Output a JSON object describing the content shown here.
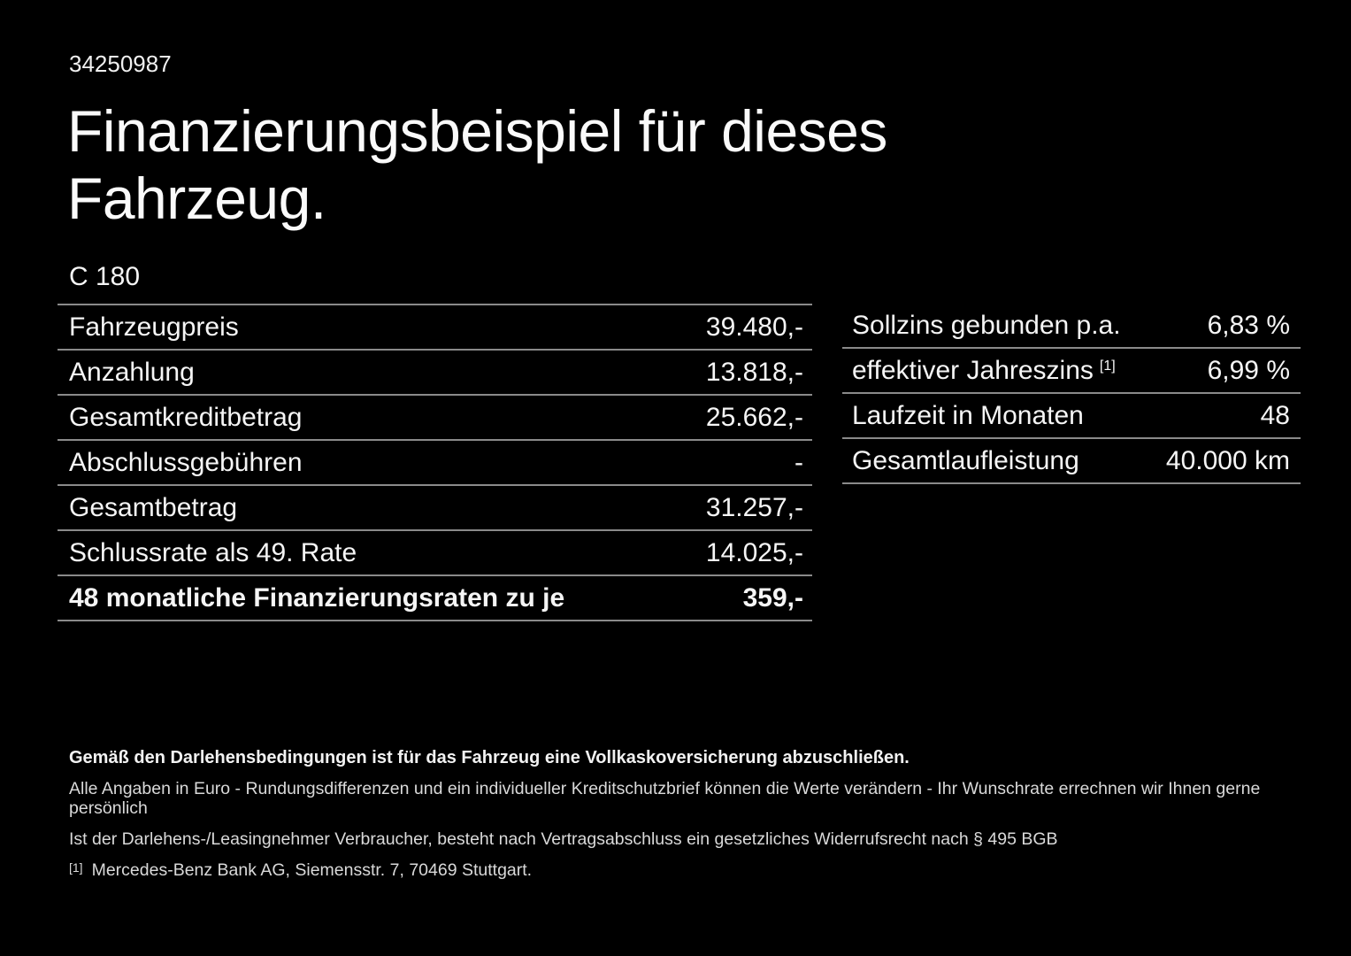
{
  "page": {
    "background_color": "#000000",
    "text_color": "#ffffff",
    "divider_color": "#8a8a8a"
  },
  "header": {
    "doc_number": "34250987",
    "title_line_1": "Finanzierungsbeispiel für dieses",
    "title_line_2": "Fahrzeug.",
    "model": "C 180"
  },
  "finance_table": {
    "rows": [
      {
        "label": "Fahrzeugpreis",
        "value": "39.480,-"
      },
      {
        "label": "Anzahlung",
        "value": "13.818,-"
      },
      {
        "label": "Gesamtkreditbetrag",
        "value": "25.662,-"
      },
      {
        "label": "Abschlussgebühren",
        "value": "-"
      },
      {
        "label": "Gesamtbetrag",
        "value": "31.257,-"
      },
      {
        "label": "Schlussrate als 49. Rate",
        "value": "14.025,-"
      },
      {
        "label": "48 monatliche Finanzierungsraten zu je",
        "value": "359,-"
      }
    ]
  },
  "conditions_table": {
    "rows": [
      {
        "label": "Sollzins gebunden p.a.",
        "sup": "",
        "value": "6,83 %"
      },
      {
        "label": "effektiver Jahreszins",
        "sup": "[1]",
        "value": "6,99 %"
      },
      {
        "label": "Laufzeit in Monaten",
        "sup": "",
        "value": "48"
      },
      {
        "label": "Gesamtlaufleistung",
        "sup": "",
        "value": "40.000 km"
      }
    ]
  },
  "footer": {
    "insurance_note": "Gemäß den Darlehensbedingungen ist für das Fahrzeug eine Vollkaskoversicherung abzuschließen.",
    "note_line_1": "Alle Angaben in Euro - Rundungsdifferenzen und ein individueller Kreditschutzbrief können die Werte verändern - Ihr Wunschrate errechnen wir Ihnen gerne persönlich",
    "note_line_2": "Ist der Darlehens-/Leasingnehmer Verbraucher, besteht nach Vertragsabschluss ein gesetzliches Widerrufsrecht nach § 495 BGB",
    "footnote_marker": "[1]",
    "footnote_text": "Mercedes-Benz Bank AG, Siemensstr. 7, 70469 Stuttgart."
  }
}
